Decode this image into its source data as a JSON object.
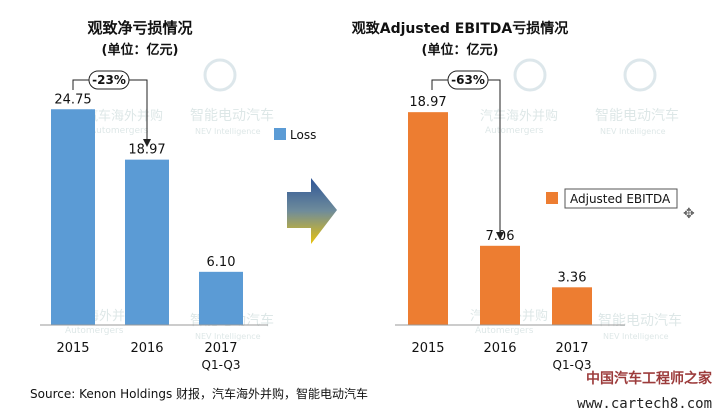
{
  "chart_data": [
    {
      "type": "bar",
      "title": "观致净亏损情况",
      "subtitle": "(单位：亿元)",
      "categories": [
        "2015",
        "2016",
        "2017"
      ],
      "category_sublabels": [
        "",
        "",
        "Q1-Q3"
      ],
      "values": [
        24.75,
        18.97,
        6.1
      ],
      "value_labels": [
        "24.75",
        "18.97",
        "6.10"
      ],
      "legend": "Loss",
      "legend_position": "right",
      "annotation": "-23%",
      "color": "#5b9bd5",
      "ylim": [
        0,
        26.5
      ]
    },
    {
      "type": "bar",
      "title": "观致Adjusted EBITDA亏损情况",
      "subtitle": "(单位：亿元)",
      "categories": [
        "2015",
        "2016",
        "2017"
      ],
      "category_sublabels": [
        "",
        "",
        "Q1-Q3"
      ],
      "values": [
        18.97,
        7.06,
        3.36
      ],
      "value_labels": [
        "18.97",
        "7.06",
        "3.36"
      ],
      "legend": "Adjusted EBITDA",
      "legend_position": "right",
      "annotation": "-63%",
      "color": "#ed7d31",
      "ylim": [
        0,
        20.5
      ]
    }
  ],
  "source": "Source: Kenon Holdings 财报，汽车海外并购，智能电动汽车",
  "watermarks": [
    "汽车海外并购",
    "Automergers",
    "智能电动汽车",
    "NEV Intelligence"
  ],
  "site_watermark": {
    "cn": "中国汽车工程师之家",
    "url": "www.cartech8.com"
  },
  "arrow_colors": {
    "top": "#2e5597",
    "mid": "#6f8c9b",
    "bottom": "#e8c20c"
  }
}
